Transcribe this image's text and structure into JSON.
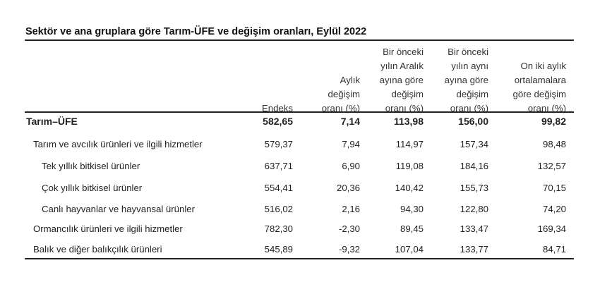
{
  "title": "Sektör ve ana gruplara göre Tarım-ÜFE ve değişim oranları, Eylül 2022",
  "columns": [
    "Endeks",
    "Aylık\ndeğişim\noranı (%)",
    "Bir önceki\nyılın Aralık\nayına göre\ndeğişim\noranı (%)",
    "Bir önceki\nyılın aynı\nayına göre\ndeğişim\noranı (%)",
    "On iki aylık\nortalamalara\ngöre değişim\noranı (%)"
  ],
  "rows": [
    {
      "label": "Tarım–ÜFE",
      "values": [
        "582,65",
        "7,14",
        "113,98",
        "156,00",
        "99,82"
      ]
    },
    {
      "label": "Tarım ve avcılık ürünleri ve ilgili hizmetler",
      "values": [
        "579,37",
        "7,94",
        "114,97",
        "157,34",
        "98,48"
      ]
    },
    {
      "label": "Tek yıllık bitkisel ürünler",
      "values": [
        "637,71",
        "6,90",
        "119,08",
        "184,16",
        "132,57"
      ]
    },
    {
      "label": "Çok yıllık bitkisel ürünler",
      "values": [
        "554,41",
        "20,36",
        "140,42",
        "155,73",
        "70,15"
      ]
    },
    {
      "label": "Canlı hayvanlar ve hayvansal ürünler",
      "values": [
        "516,02",
        "2,16",
        "94,30",
        "122,80",
        "74,20"
      ]
    },
    {
      "label": "Ormancılık ürünleri ve ilgili hizmetler",
      "values": [
        "782,30",
        "-2,30",
        "89,45",
        "133,47",
        "169,34"
      ]
    },
    {
      "label": "Balık ve diğer balıkçılık ürünleri",
      "values": [
        "545,89",
        "-9,32",
        "107,04",
        "133,77",
        "84,71"
      ]
    }
  ]
}
